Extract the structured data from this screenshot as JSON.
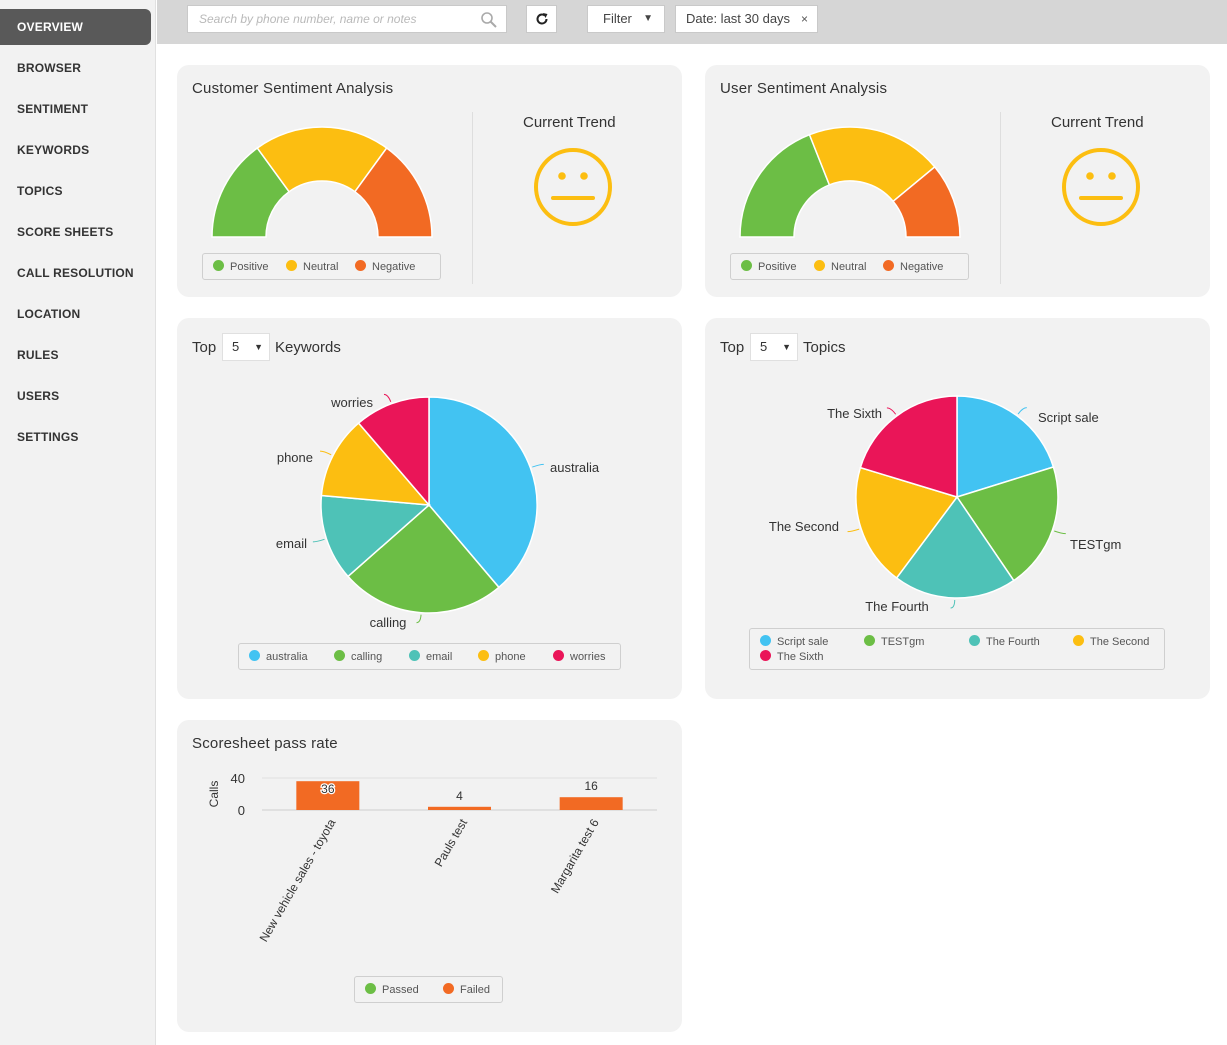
{
  "sidebar": {
    "items": [
      {
        "label": "OVERVIEW",
        "active": true
      },
      {
        "label": "BROWSER"
      },
      {
        "label": "SENTIMENT"
      },
      {
        "label": "KEYWORDS"
      },
      {
        "label": "TOPICS"
      },
      {
        "label": "SCORE SHEETS"
      },
      {
        "label": "CALL RESOLUTION"
      },
      {
        "label": "LOCATION"
      },
      {
        "label": "RULES"
      },
      {
        "label": "USERS"
      },
      {
        "label": "SETTINGS"
      }
    ]
  },
  "toolbar": {
    "search_placeholder": "Search by phone number, name or notes",
    "filter_label": "Filter",
    "date_chip_label": "Date: last 30 days",
    "date_chip_close": "×"
  },
  "colors": {
    "positive": "#6cbe45",
    "neutral": "#fcbe11",
    "negative": "#f26a23",
    "blue": "#42c3f2",
    "teal": "#4ec2b7",
    "pink": "#ea1558"
  },
  "customer_sentiment": {
    "title": "Customer Sentiment Analysis",
    "trend_label": "Current Trend",
    "trend_icon": "neutral-face-icon",
    "legend": [
      "Positive",
      "Neutral",
      "Negative"
    ]
  },
  "user_sentiment": {
    "title": "User Sentiment Analysis",
    "trend_label": "Current Trend",
    "trend_icon": "neutral-face-icon",
    "legend": [
      "Positive",
      "Neutral",
      "Negative"
    ]
  },
  "keywords": {
    "prefix": "Top",
    "count": "5",
    "suffix": "Keywords"
  },
  "topics": {
    "prefix": "Top",
    "count": "5",
    "suffix": "Topics"
  },
  "scoresheet": {
    "title": "Scoresheet pass rate",
    "legend": [
      "Passed",
      "Failed"
    ]
  },
  "chart_data": [
    {
      "type": "pie",
      "id": "customer-sentiment-gauge",
      "categories": [
        "Positive",
        "Neutral",
        "Negative"
      ],
      "values": [
        30,
        40,
        30
      ],
      "note_style": "semi-donut gauge"
    },
    {
      "type": "pie",
      "id": "user-sentiment-gauge",
      "categories": [
        "Positive",
        "Neutral",
        "Negative"
      ],
      "values": [
        38,
        40,
        22
      ],
      "note_style": "semi-donut gauge"
    },
    {
      "type": "pie",
      "id": "keywords-pie",
      "categories": [
        "australia",
        "calling",
        "email",
        "phone",
        "worries"
      ],
      "values": [
        38.8,
        24.7,
        12.9,
        12.3,
        11.3
      ]
    },
    {
      "type": "pie",
      "id": "topics-pie",
      "categories": [
        "Script sale",
        "TESTgm",
        "The Fourth",
        "The Second",
        "The Sixth"
      ],
      "values": [
        20.2,
        20.3,
        19.7,
        19.5,
        20.3
      ]
    },
    {
      "type": "bar",
      "id": "scoresheet-bar",
      "categories": [
        "New vehicle sales - toyota",
        "Pauls test",
        "Margarita test 6"
      ],
      "series": [
        {
          "name": "Passed",
          "values": [
            0,
            0,
            0
          ]
        },
        {
          "name": "Failed",
          "values": [
            36,
            4,
            16
          ]
        }
      ],
      "data_labels": [
        "36",
        "4",
        "16"
      ],
      "ylabel": "Calls",
      "yticks": [
        "40",
        "0"
      ],
      "ylim": [
        0,
        40
      ]
    }
  ]
}
